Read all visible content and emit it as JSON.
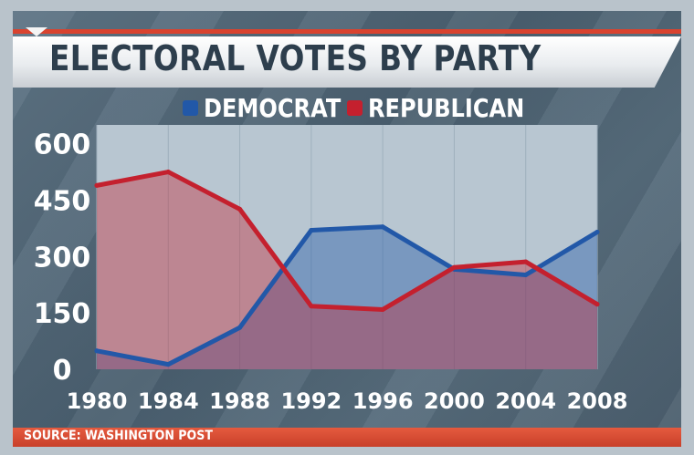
{
  "chart_data": {
    "type": "area",
    "title": "ELECTORAL VOTES BY PARTY",
    "categories": [
      "1980",
      "1984",
      "1988",
      "1992",
      "1996",
      "2000",
      "2004",
      "2008"
    ],
    "y_ticks": [
      "600",
      "450",
      "300",
      "150",
      "0"
    ],
    "ylim": [
      0,
      650
    ],
    "grid": true,
    "legend_position": "top",
    "series": [
      {
        "name": "DEMOCRAT",
        "color": "#2258a8",
        "values": [
          49,
          13,
          111,
          370,
          379,
          266,
          251,
          365
        ]
      },
      {
        "name": "REPUBLICAN",
        "color": "#c4202e",
        "values": [
          489,
          525,
          426,
          168,
          159,
          271,
          286,
          173
        ]
      }
    ]
  },
  "footer": {
    "source": "SOURCE: WASHINGTON POST"
  }
}
